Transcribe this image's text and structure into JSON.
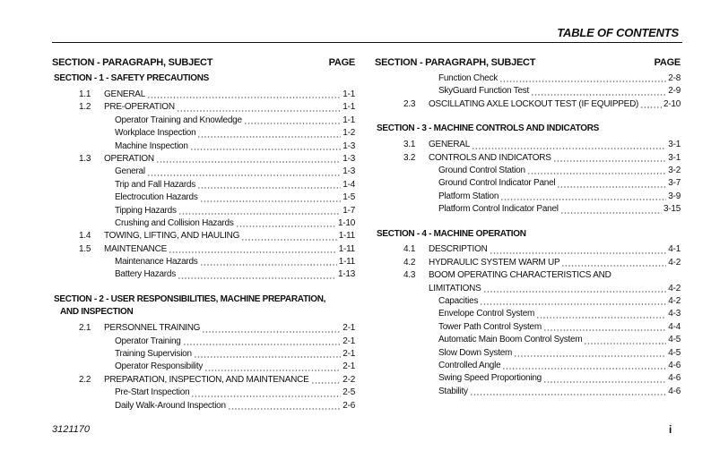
{
  "header": {
    "title": "TABLE OF CONTENTS"
  },
  "columns": [
    {
      "heading": {
        "subject": "SECTION - PARAGRAPH, SUBJECT",
        "page": "PAGE"
      },
      "entries": [
        {
          "type": "section",
          "text": "SECTION - 1 - SAFETY PRECAUTIONS"
        },
        {
          "type": "item",
          "num": "1.1",
          "title": "GENERAL",
          "page": "1-1"
        },
        {
          "type": "item",
          "num": "1.2",
          "title": "PRE-OPERATION",
          "page": "1-1"
        },
        {
          "type": "sub",
          "title": "Operator Training and Knowledge",
          "page": "1-1"
        },
        {
          "type": "sub",
          "title": "Workplace Inspection",
          "page": "1-2"
        },
        {
          "type": "sub",
          "title": "Machine Inspection",
          "page": "1-3"
        },
        {
          "type": "item",
          "num": "1.3",
          "title": "OPERATION",
          "page": "1-3"
        },
        {
          "type": "sub",
          "title": "General",
          "page": "1-3"
        },
        {
          "type": "sub",
          "title": "Trip and Fall Hazards",
          "page": "1-4"
        },
        {
          "type": "sub",
          "title": "Electrocution Hazards",
          "page": "1-5"
        },
        {
          "type": "sub",
          "title": "Tipping Hazards",
          "page": "1-7"
        },
        {
          "type": "sub",
          "title": "Crushing and Collision Hazards",
          "page": "1-10"
        },
        {
          "type": "item",
          "num": "1.4",
          "title": "TOWING, LIFTING, AND HAULING",
          "page": "1-11"
        },
        {
          "type": "item",
          "num": "1.5",
          "title": "MAINTENANCE",
          "page": "1-11"
        },
        {
          "type": "sub",
          "title": "Maintenance Hazards",
          "page": "1-11"
        },
        {
          "type": "sub",
          "title": "Battery Hazards",
          "page": "1-13"
        },
        {
          "type": "section",
          "text": "SECTION - 2 - USER RESPONSIBILITIES, MACHINE PREPARATION,",
          "gap": true,
          "notlast": true
        },
        {
          "type": "section",
          "text": "AND INSPECTION",
          "cont": true
        },
        {
          "type": "item",
          "num": "2.1",
          "title": "PERSONNEL TRAINING",
          "page": "2-1"
        },
        {
          "type": "sub",
          "title": "Operator Training",
          "page": "2-1"
        },
        {
          "type": "sub",
          "title": "Training Supervision",
          "page": "2-1"
        },
        {
          "type": "sub",
          "title": "Operator Responsibility",
          "page": "2-1"
        },
        {
          "type": "item",
          "num": "2.2",
          "title": "PREPARATION, INSPECTION, AND MAINTENANCE",
          "page": "2-2"
        },
        {
          "type": "sub",
          "title": "Pre-Start Inspection",
          "page": "2-5"
        },
        {
          "type": "sub",
          "title": "Daily Walk-Around Inspection",
          "page": "2-6"
        }
      ]
    },
    {
      "heading": {
        "subject": "SECTION - PARAGRAPH, SUBJECT",
        "page": "PAGE"
      },
      "entries": [
        {
          "type": "sub",
          "title": "Function Check",
          "page": "2-8"
        },
        {
          "type": "sub",
          "title": "SkyGuard Function Test",
          "page": "2-9"
        },
        {
          "type": "item",
          "num": "2.3",
          "title": "OSCILLATING AXLE LOCKOUT TEST (IF EQUIPPED)",
          "page": "2-10"
        },
        {
          "type": "section",
          "text": "SECTION - 3 - MACHINE CONTROLS AND INDICATORS",
          "gap": true
        },
        {
          "type": "item",
          "num": "3.1",
          "title": "GENERAL",
          "page": "3-1"
        },
        {
          "type": "item",
          "num": "3.2",
          "title": "CONTROLS AND INDICATORS",
          "page": "3-1"
        },
        {
          "type": "sub",
          "title": "Ground Control Station",
          "page": "3-2"
        },
        {
          "type": "sub",
          "title": "Ground Control Indicator Panel",
          "page": "3-7"
        },
        {
          "type": "sub",
          "title": "Platform Station",
          "page": "3-9"
        },
        {
          "type": "sub",
          "title": "Platform Control Indicator Panel",
          "page": "3-15"
        },
        {
          "type": "section",
          "text": "SECTION - 4 - MACHINE OPERATION",
          "gap": true
        },
        {
          "type": "item",
          "num": "4.1",
          "title": "DESCRIPTION",
          "page": "4-1"
        },
        {
          "type": "item",
          "num": "4.2",
          "title": "HYDRAULIC SYSTEM WARM UP",
          "page": "4-2"
        },
        {
          "type": "itemhead",
          "num": "4.3",
          "title": "BOOM OPERATING CHARACTERISTICS AND"
        },
        {
          "type": "itemcont",
          "title": "LIMITATIONS",
          "page": "4-2"
        },
        {
          "type": "sub",
          "title": "Capacities",
          "page": "4-2"
        },
        {
          "type": "sub",
          "title": "Envelope Control System",
          "page": "4-3"
        },
        {
          "type": "sub",
          "title": "Tower Path Control System",
          "page": "4-4"
        },
        {
          "type": "sub",
          "title": "Automatic Main Boom Control System",
          "page": "4-5"
        },
        {
          "type": "sub",
          "title": "Slow Down System",
          "page": "4-5"
        },
        {
          "type": "sub",
          "title": "Controlled Angle",
          "page": "4-6"
        },
        {
          "type": "sub",
          "title": "Swing Speed Proportioning",
          "page": "4-6"
        },
        {
          "type": "sub",
          "title": "Stability",
          "page": "4-6"
        }
      ]
    }
  ],
  "footer": {
    "doc_number": "3121170",
    "page_number": "i"
  }
}
